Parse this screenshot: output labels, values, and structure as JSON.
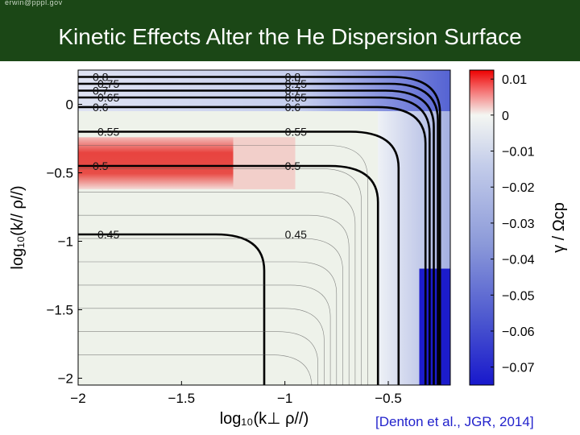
{
  "header": {
    "email": "erwin@pppl.gov",
    "title": "Kinetic Effects Alter the He Dispersion Surface"
  },
  "citation": "[Denton et al., JGR, 2014]",
  "chart_data": {
    "type": "heatmap",
    "title": "",
    "xlabel": "log₁₀(k⊥ ρ//)",
    "ylabel": "log₁₀(k// ρ//)",
    "xlim": [
      -2.0,
      -0.2
    ],
    "ylim": [
      -2.05,
      0.25
    ],
    "xticks": [
      -2,
      -1.5,
      -1,
      -0.5
    ],
    "xtick_labels": [
      "−2",
      "−1.5",
      "−1",
      "−0.5"
    ],
    "yticks": [
      0,
      -0.5,
      -1,
      -1.5,
      -2
    ],
    "ytick_labels": [
      "0",
      "−0.5",
      "−1",
      "−1.5",
      "−2"
    ],
    "colorbar": {
      "label": "γ / Ωcp",
      "range": [
        -0.075,
        0.0125
      ],
      "ticks": [
        0.01,
        0,
        -0.01,
        -0.02,
        -0.03,
        -0.04,
        -0.05,
        -0.06,
        -0.07
      ],
      "tick_labels": [
        "0.01",
        "0",
        "−0.01",
        "−0.02",
        "−0.03",
        "−0.04",
        "−0.05",
        "−0.06",
        "−0.07"
      ]
    },
    "growth_regions": [
      {
        "name": "positive growth band",
        "x": [
          -2.0,
          -1.25
        ],
        "y": [
          -0.62,
          -0.24
        ],
        "gamma": 0.011
      },
      {
        "name": "damping cap",
        "x": [
          -2.0,
          -0.2
        ],
        "y": [
          -0.05,
          0.25
        ],
        "gamma": -0.015
      },
      {
        "name": "strong damping corner",
        "x": [
          -0.35,
          -0.2
        ],
        "y": [
          -2.05,
          -1.2
        ],
        "gamma": -0.07
      }
    ],
    "contours": [
      {
        "level": 0.8,
        "label": "0.8",
        "y_flat": 0.2,
        "x_turn": -0.25
      },
      {
        "level": 0.75,
        "label": "0.75",
        "y_flat": 0.15,
        "x_turn": -0.26
      },
      {
        "level": 0.7,
        "label": "0.7",
        "y_flat": 0.1,
        "x_turn": -0.28
      },
      {
        "level": 0.65,
        "label": "0.65",
        "y_flat": 0.05,
        "x_turn": -0.3
      },
      {
        "level": 0.6,
        "label": "0.6",
        "y_flat": -0.02,
        "x_turn": -0.32
      },
      {
        "level": 0.55,
        "label": "0.55",
        "y_flat": -0.2,
        "x_turn": -0.45
      },
      {
        "level": 0.5,
        "label": "0.5",
        "y_flat": -0.45,
        "x_turn": -0.55
      },
      {
        "level": 0.45,
        "label": "0.45",
        "y_flat": -0.95,
        "x_turn": -1.1
      }
    ]
  }
}
